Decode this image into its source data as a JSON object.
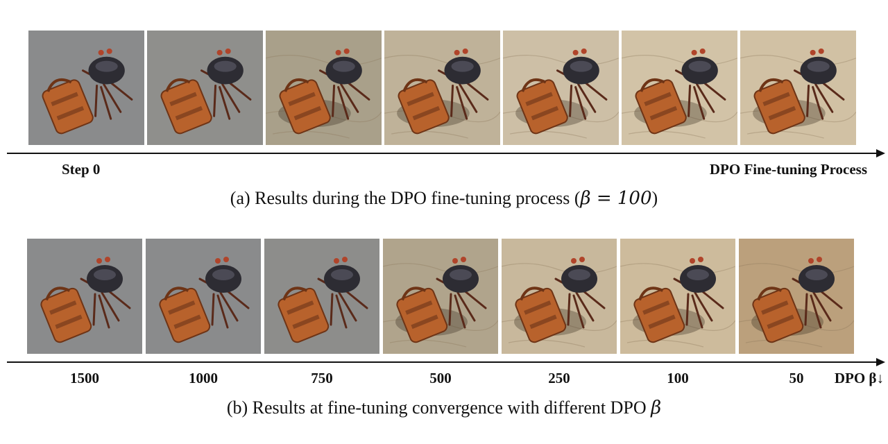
{
  "panel_a": {
    "images": [
      {
        "alt": "crab-with-bag step 0",
        "bg": "#8a8b8c"
      },
      {
        "alt": "crab-with-bag step 1",
        "bg": "#8f8f8c"
      },
      {
        "alt": "crab-with-bag step 2",
        "bg": "#a9a08a"
      },
      {
        "alt": "crab-with-bag step 3",
        "bg": "#bfb299"
      },
      {
        "alt": "crab-with-bag step 4",
        "bg": "#cdbfa6"
      },
      {
        "alt": "crab-with-bag step 5",
        "bg": "#d2c3a7"
      },
      {
        "alt": "crab-with-bag step 6",
        "bg": "#d1c1a4"
      }
    ],
    "start_label": "Step 0",
    "end_label": "DPO Fine-tuning Process",
    "caption_prefix": "(a)  Results during the DPO fine-tuning process (",
    "caption_math": "β = 100",
    "caption_suffix": ")"
  },
  "panel_b": {
    "images": [
      {
        "alt": "crab-with-bag beta 1500",
        "bg": "#8a8b8c"
      },
      {
        "alt": "crab-with-bag beta 1000",
        "bg": "#8a8b8c"
      },
      {
        "alt": "crab-with-bag beta 750",
        "bg": "#8d8d8b"
      },
      {
        "alt": "crab-with-bag beta 500",
        "bg": "#b0a48c"
      },
      {
        "alt": "crab-with-bag beta 250",
        "bg": "#c8b89c"
      },
      {
        "alt": "crab-with-bag beta 100",
        "bg": "#cdbb9c"
      },
      {
        "alt": "crab-with-bag beta 50",
        "bg": "#bba07c"
      }
    ],
    "tick_labels": [
      "1500",
      "1000",
      "750",
      "500",
      "250",
      "100",
      "50"
    ],
    "end_label": "DPO β↓",
    "caption_prefix": "(b)  Results at fine-tuning convergence with different DPO ",
    "caption_math": "β"
  }
}
